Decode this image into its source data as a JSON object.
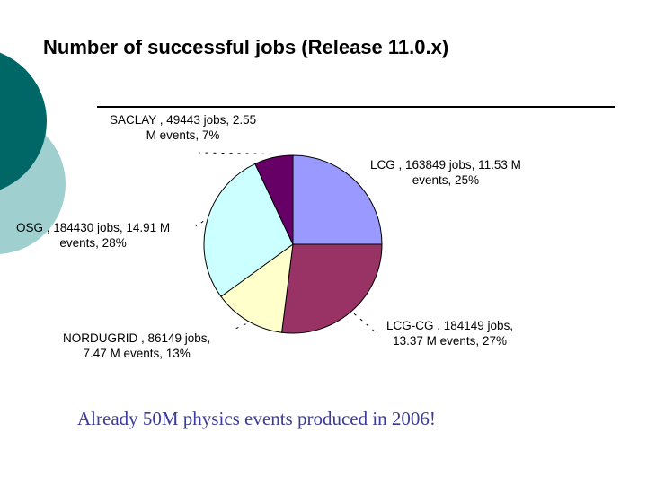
{
  "slide": {
    "title": "Number of successful jobs (Release 11.0.x)",
    "caption": "Already 50M physics events produced in 2006!",
    "decor_colors": {
      "dark_teal": "#006666",
      "light_teal": "#9fcfcf"
    }
  },
  "chart_data": {
    "type": "pie",
    "slices": [
      {
        "name": "LCG",
        "jobs": 163849,
        "events_m": 11.53,
        "percent": 25,
        "color": "#9999ff",
        "label_lines": [
          "LCG , 163849 jobs, 11.53 M",
          "events, 25%"
        ]
      },
      {
        "name": "LCG-CG",
        "jobs": 184149,
        "events_m": 13.37,
        "percent": 27,
        "color": "#993366",
        "label_lines": [
          "LCG-CG , 184149 jobs,",
          "13.37 M events, 27%"
        ]
      },
      {
        "name": "NORDUGRID",
        "jobs": 86149,
        "events_m": 7.47,
        "percent": 13,
        "color": "#ffffcc",
        "label_lines": [
          "NORDUGRID , 86149 jobs,",
          "7.47 M events, 13%"
        ]
      },
      {
        "name": "OSG",
        "jobs": 184430,
        "events_m": 14.91,
        "percent": 28,
        "color": "#ccffff",
        "label_lines": [
          "OSG , 184430 jobs, 14.91 M",
          "events, 28%"
        ]
      },
      {
        "name": "SACLAY",
        "jobs": 49443,
        "events_m": 2.55,
        "percent": 7,
        "color": "#660066",
        "label_lines": [
          "SACLAY , 49443 jobs, 2.55",
          "M events, 7%"
        ]
      }
    ]
  }
}
